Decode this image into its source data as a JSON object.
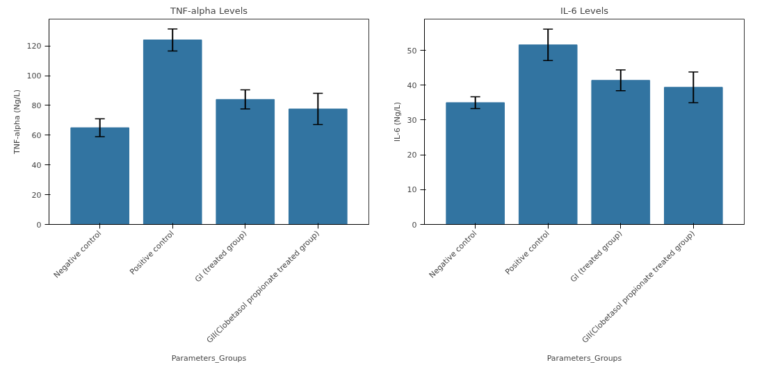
{
  "chart_data": [
    {
      "type": "bar",
      "title": "TNF-alpha Levels",
      "xlabel": "Parameters_Groups",
      "ylabel": "TNF-alpha (Ng/L)",
      "categories": [
        "Negative control",
        "Positive control",
        "GI (treated group)",
        "GII(Clobetasol propionate treated group)"
      ],
      "values": [
        65,
        124,
        84,
        77.6
      ],
      "errors": [
        6,
        7.4,
        6.4,
        10.5
      ],
      "color": "#3274a1",
      "ylim": [
        0,
        138
      ],
      "yticks": [
        0,
        20,
        40,
        60,
        80,
        100,
        120
      ],
      "grid": false
    },
    {
      "type": "bar",
      "title": "IL-6 Levels",
      "xlabel": "Parameters_Groups",
      "ylabel": "IL-6 (Ng/L)",
      "categories": [
        "Negative control",
        "Positive control",
        "GI (treated group)",
        "GII(Clobetasol propionate treated group)"
      ],
      "values": [
        35,
        51.6,
        41.4,
        39.4
      ],
      "errors": [
        1.7,
        4.5,
        3,
        4.4
      ],
      "color": "#3274a1",
      "ylim": [
        0,
        59
      ],
      "yticks": [
        0,
        10,
        20,
        30,
        40,
        50
      ],
      "grid": false
    }
  ]
}
